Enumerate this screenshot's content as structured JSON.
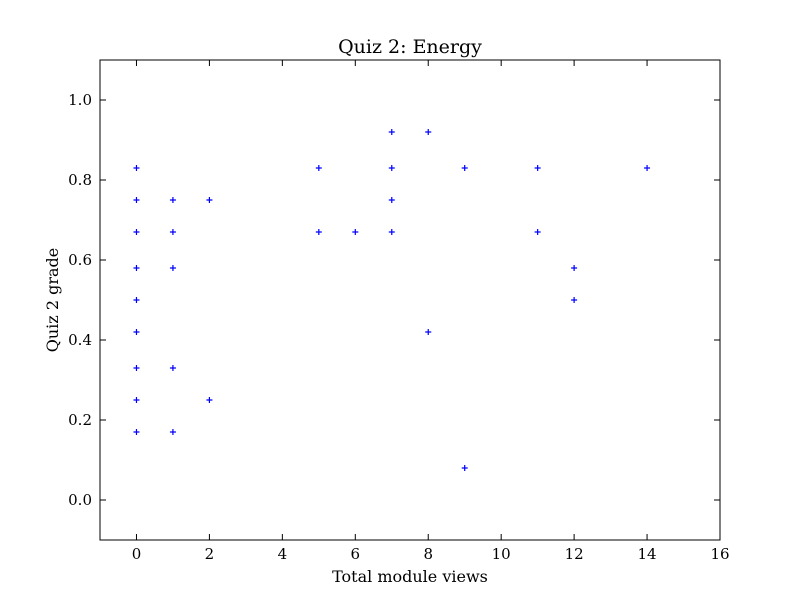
{
  "chart_data": {
    "type": "scatter",
    "title": "Quiz 2: Energy",
    "xlabel": "Total module views",
    "ylabel": "Quiz 2 grade",
    "xlim": [
      -1,
      16
    ],
    "ylim": [
      -0.1,
      1.1
    ],
    "x_ticks": [
      0,
      2,
      4,
      6,
      8,
      10,
      12,
      14,
      16
    ],
    "x_tick_labels": [
      "0",
      "2",
      "4",
      "6",
      "8",
      "10",
      "12",
      "14",
      "16"
    ],
    "y_ticks": [
      0.0,
      0.2,
      0.4,
      0.6,
      0.8,
      1.0
    ],
    "y_tick_labels": [
      "0.0",
      "0.2",
      "0.4",
      "0.6",
      "0.8",
      "1.0"
    ],
    "grid": false,
    "legend": "none",
    "marker": "+",
    "color": "#0000ff",
    "series": [
      {
        "points": [
          [
            0,
            0.83
          ],
          [
            0,
            0.75
          ],
          [
            0,
            0.67
          ],
          [
            0,
            0.58
          ],
          [
            0,
            0.5
          ],
          [
            0,
            0.42
          ],
          [
            0,
            0.33
          ],
          [
            0,
            0.25
          ],
          [
            0,
            0.17
          ],
          [
            1,
            0.75
          ],
          [
            1,
            0.67
          ],
          [
            1,
            0.58
          ],
          [
            1,
            0.33
          ],
          [
            1,
            0.17
          ],
          [
            2,
            0.75
          ],
          [
            2,
            0.25
          ],
          [
            5,
            0.83
          ],
          [
            5,
            0.67
          ],
          [
            6,
            0.67
          ],
          [
            7,
            0.92
          ],
          [
            7,
            0.83
          ],
          [
            7,
            0.75
          ],
          [
            7,
            0.67
          ],
          [
            8,
            0.92
          ],
          [
            8,
            0.42
          ],
          [
            9,
            0.83
          ],
          [
            9,
            0.08
          ],
          [
            11,
            0.83
          ],
          [
            11,
            0.67
          ],
          [
            12,
            0.58
          ],
          [
            12,
            0.5
          ],
          [
            14,
            0.83
          ]
        ]
      }
    ]
  }
}
